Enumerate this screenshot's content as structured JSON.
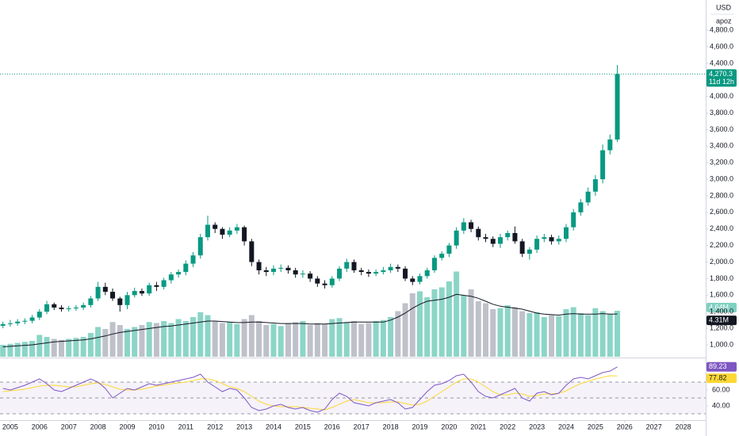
{
  "header": {
    "currency": "USD",
    "unit": "apoz"
  },
  "chart_data": [
    {
      "type": "candlestick",
      "x": [
        2004.75,
        2005,
        2005.25,
        2005.5,
        2005.75,
        2006,
        2006.25,
        2006.5,
        2006.75,
        2007,
        2007.25,
        2007.5,
        2007.75,
        2008,
        2008.25,
        2008.5,
        2008.75,
        2009,
        2009.25,
        2009.5,
        2009.75,
        2010,
        2010.25,
        2010.5,
        2010.75,
        2011,
        2011.25,
        2011.5,
        2011.75,
        2012,
        2012.25,
        2012.5,
        2012.75,
        2013,
        2013.25,
        2013.5,
        2013.75,
        2014,
        2014.25,
        2014.5,
        2014.75,
        2015,
        2015.25,
        2015.5,
        2015.75,
        2016,
        2016.25,
        2016.5,
        2016.75,
        2017,
        2017.25,
        2017.5,
        2017.75,
        2018,
        2018.25,
        2018.5,
        2018.75,
        2019,
        2019.25,
        2019.5,
        2019.75,
        2020,
        2020.25,
        2020.5,
        2020.75,
        2021,
        2021.25,
        2021.5,
        2021.75,
        2022,
        2022.25,
        2022.5,
        2022.75,
        2023,
        2023.25,
        2023.5,
        2023.75,
        2024,
        2024.25,
        2024.5,
        2024.75,
        2025,
        2025.25,
        2025.5,
        2025.75
      ],
      "open": [
        1230,
        1250,
        1260,
        1280,
        1290,
        1330,
        1400,
        1490,
        1450,
        1430,
        1440,
        1450,
        1480,
        1560,
        1700,
        1640,
        1560,
        1480,
        1600,
        1650,
        1620,
        1720,
        1700,
        1780,
        1850,
        1880,
        1980,
        2080,
        2300,
        2450,
        2400,
        2330,
        2380,
        2420,
        2250,
        2000,
        1900,
        1880,
        1920,
        1930,
        1900,
        1850,
        1860,
        1800,
        1740,
        1720,
        1800,
        1920,
        2000,
        1900,
        1880,
        1860,
        1880,
        1900,
        1940,
        1920,
        1800,
        1760,
        1830,
        1900,
        2050,
        2100,
        2200,
        2380,
        2480,
        2400,
        2300,
        2280,
        2220,
        2300,
        2350,
        2250,
        2100,
        2150,
        2280,
        2300,
        2250,
        2280,
        2420,
        2600,
        2720,
        2850,
        3000,
        3350,
        3480
      ],
      "high": [
        1280,
        1300,
        1310,
        1320,
        1360,
        1430,
        1530,
        1510,
        1480,
        1470,
        1480,
        1510,
        1590,
        1760,
        1750,
        1680,
        1580,
        1640,
        1690,
        1680,
        1750,
        1760,
        1810,
        1880,
        1910,
        2020,
        2120,
        2340,
        2560,
        2480,
        2420,
        2420,
        2460,
        2440,
        2280,
        2030,
        1940,
        1960,
        1970,
        1960,
        1930,
        1900,
        1890,
        1830,
        1780,
        1830,
        1950,
        2040,
        2030,
        1930,
        1910,
        1910,
        1940,
        1980,
        1970,
        1950,
        1830,
        1860,
        1930,
        2080,
        2130,
        2230,
        2420,
        2530,
        2510,
        2430,
        2340,
        2310,
        2340,
        2380,
        2430,
        2280,
        2180,
        2320,
        2340,
        2330,
        2320,
        2460,
        2640,
        2760,
        2900,
        3050,
        3420,
        3540,
        4380
      ],
      "low": [
        1200,
        1220,
        1230,
        1250,
        1260,
        1300,
        1370,
        1420,
        1400,
        1400,
        1410,
        1420,
        1450,
        1530,
        1600,
        1530,
        1400,
        1430,
        1570,
        1590,
        1590,
        1650,
        1670,
        1740,
        1810,
        1840,
        1940,
        2040,
        2260,
        2350,
        2280,
        2300,
        2340,
        2200,
        1950,
        1850,
        1830,
        1840,
        1880,
        1860,
        1810,
        1810,
        1760,
        1700,
        1680,
        1690,
        1770,
        1880,
        1870,
        1840,
        1820,
        1830,
        1850,
        1870,
        1880,
        1770,
        1720,
        1730,
        1800,
        1870,
        2020,
        2060,
        2160,
        2340,
        2360,
        2260,
        2240,
        2180,
        2170,
        2260,
        2220,
        2060,
        2030,
        2110,
        2240,
        2210,
        2210,
        2240,
        2380,
        2560,
        2680,
        2800,
        2950,
        3300,
        3450
      ],
      "close": [
        1250,
        1260,
        1280,
        1290,
        1330,
        1400,
        1490,
        1450,
        1430,
        1440,
        1450,
        1480,
        1560,
        1700,
        1640,
        1560,
        1480,
        1600,
        1650,
        1620,
        1720,
        1700,
        1780,
        1850,
        1880,
        1980,
        2080,
        2300,
        2450,
        2400,
        2330,
        2380,
        2420,
        2250,
        2000,
        1900,
        1880,
        1920,
        1930,
        1900,
        1850,
        1860,
        1800,
        1740,
        1720,
        1800,
        1920,
        2000,
        1900,
        1880,
        1860,
        1880,
        1900,
        1940,
        1920,
        1800,
        1760,
        1830,
        1900,
        2050,
        2100,
        2200,
        2380,
        2480,
        2400,
        2300,
        2280,
        2220,
        2300,
        2350,
        2250,
        2100,
        2150,
        2280,
        2300,
        2250,
        2280,
        2420,
        2600,
        2720,
        2850,
        3000,
        3350,
        3480,
        4270.3
      ],
      "up_color": "#089981",
      "down_color": "#131722",
      "xlim": [
        2004.65,
        2028.77
      ],
      "xticks": [
        2005,
        2006,
        2007,
        2008,
        2009,
        2010,
        2011,
        2012,
        2013,
        2014,
        2015,
        2016,
        2017,
        2018,
        2019,
        2020,
        2021,
        2022,
        2023,
        2024,
        2025,
        2026,
        2027,
        2028
      ],
      "ylim": [
        856,
        5165
      ],
      "yticks": [
        {
          "value": 4800,
          "label": "4,800.0"
        },
        {
          "value": 4600,
          "label": "4,600.0"
        },
        {
          "value": 4400,
          "label": "4,400.0"
        },
        {
          "value": 4200,
          "label": "4,200.0"
        },
        {
          "value": 4000,
          "label": "4,000.0"
        },
        {
          "value": 3800,
          "label": "3,800.0"
        },
        {
          "value": 3600,
          "label": "3,600.0"
        },
        {
          "value": 3400,
          "label": "3,400.0"
        },
        {
          "value": 3200,
          "label": "3,200.0"
        },
        {
          "value": 3000,
          "label": "3,000.0"
        },
        {
          "value": 2800,
          "label": "2,800.0"
        },
        {
          "value": 2600,
          "label": "2,600.0"
        },
        {
          "value": 2400,
          "label": "2,400.0"
        },
        {
          "value": 2200,
          "label": "2,200.0"
        },
        {
          "value": 2000,
          "label": "2,000.0"
        },
        {
          "value": 1800,
          "label": "1,800.0"
        },
        {
          "value": 1600,
          "label": "1,600.0"
        },
        {
          "value": 1400,
          "label": "1,400.0"
        },
        {
          "value": 1200,
          "label": "1,200.0"
        },
        {
          "value": 1000,
          "label": "1,000.0"
        }
      ],
      "last_price": {
        "value": 4270.3,
        "label": "4,270.3"
      },
      "countdown": "11d 12h"
    },
    {
      "type": "bar",
      "values": [
        1.2,
        1.3,
        1.4,
        1.5,
        1.6,
        2.2,
        2.0,
        1.8,
        1.7,
        1.8,
        1.9,
        2.0,
        2.4,
        3.0,
        2.8,
        3.5,
        3.2,
        2.8,
        3.0,
        3.2,
        3.5,
        3.4,
        3.6,
        3.4,
        3.8,
        3.6,
        4.0,
        4.5,
        4.2,
        3.6,
        3.4,
        3.5,
        3.3,
        3.8,
        4.2,
        3.6,
        3.2,
        3.3,
        3.1,
        3.4,
        3.5,
        3.6,
        3.2,
        3.4,
        3.3,
        3.8,
        3.9,
        3.5,
        3.6,
        3.3,
        3.4,
        3.6,
        3.7,
        4.0,
        4.6,
        5.4,
        6.4,
        6.6,
        6.0,
        6.8,
        7.0,
        7.6,
        8.6,
        6.2,
        6.8,
        5.6,
        5.4,
        4.8,
        4.9,
        5.2,
        5.0,
        4.6,
        4.4,
        4.5,
        4.0,
        4.2,
        4.1,
        4.8,
        5.0,
        4.4,
        4.2,
        4.9,
        4.6,
        4.3,
        4.64
      ],
      "ma": [
        1.0,
        1.05,
        1.1,
        1.15,
        1.2,
        1.3,
        1.4,
        1.5,
        1.55,
        1.6,
        1.65,
        1.7,
        1.8,
        1.95,
        2.1,
        2.3,
        2.45,
        2.55,
        2.65,
        2.75,
        2.85,
        2.95,
        3.05,
        3.1,
        3.2,
        3.3,
        3.4,
        3.5,
        3.6,
        3.6,
        3.55,
        3.5,
        3.45,
        3.45,
        3.5,
        3.5,
        3.45,
        3.4,
        3.35,
        3.35,
        3.35,
        3.35,
        3.3,
        3.3,
        3.3,
        3.35,
        3.4,
        3.45,
        3.5,
        3.5,
        3.5,
        3.5,
        3.5,
        3.7,
        4.0,
        4.4,
        4.9,
        5.3,
        5.6,
        5.7,
        5.8,
        6.0,
        6.3,
        6.2,
        6.1,
        5.9,
        5.6,
        5.3,
        5.1,
        5.0,
        4.9,
        4.8,
        4.6,
        4.4,
        4.3,
        4.25,
        4.2,
        4.3,
        4.35,
        4.3,
        4.3,
        4.3,
        4.35,
        4.3,
        4.31
      ],
      "ylim": [
        0,
        36
      ],
      "up_color": "#7fd1c1",
      "down_color": "#b8bbc4",
      "ma_color": "#131722",
      "last": {
        "value": 4.64,
        "label": "4.64M"
      },
      "ma_last": {
        "value": 4.31,
        "label": "4.31M"
      }
    },
    {
      "type": "line",
      "values": [
        62,
        60,
        63,
        66,
        70,
        74,
        68,
        60,
        58,
        62,
        66,
        70,
        74,
        70,
        62,
        50,
        56,
        62,
        60,
        64,
        68,
        66,
        68,
        70,
        72,
        74,
        76,
        80,
        70,
        64,
        58,
        62,
        60,
        50,
        38,
        34,
        36,
        40,
        42,
        38,
        36,
        38,
        34,
        32,
        36,
        48,
        56,
        52,
        44,
        42,
        40,
        44,
        46,
        48,
        44,
        36,
        38,
        48,
        58,
        66,
        68,
        72,
        78,
        80,
        70,
        58,
        52,
        50,
        54,
        58,
        62,
        50,
        46,
        56,
        58,
        54,
        56,
        66,
        74,
        76,
        74,
        78,
        82,
        84,
        89.23
      ],
      "ma": [
        58,
        59,
        60,
        61,
        63,
        65,
        66,
        66,
        65,
        64,
        64,
        66,
        68,
        69,
        67,
        64,
        61,
        60,
        60,
        61,
        63,
        65,
        66,
        68,
        69,
        70,
        72,
        74,
        74,
        72,
        68,
        64,
        62,
        58,
        52,
        46,
        42,
        40,
        39,
        39,
        39,
        38,
        37,
        36,
        35,
        38,
        42,
        46,
        48,
        46,
        44,
        44,
        44,
        45,
        45,
        43,
        41,
        42,
        46,
        52,
        58,
        64,
        70,
        74,
        74,
        70,
        64,
        58,
        54,
        54,
        56,
        55,
        52,
        53,
        55,
        55,
        56,
        59,
        64,
        68,
        71,
        74,
        76,
        78,
        77.82
      ],
      "ylim": [
        24,
        97
      ],
      "yticks": [
        {
          "value": 60,
          "label": "60.00"
        },
        {
          "value": 40,
          "label": "40.00"
        }
      ],
      "levels": [
        70,
        50,
        30
      ],
      "color": "#7e57c2",
      "ma_color": "#fdd835",
      "last": 89.23,
      "ma_last": 77.82
    }
  ]
}
